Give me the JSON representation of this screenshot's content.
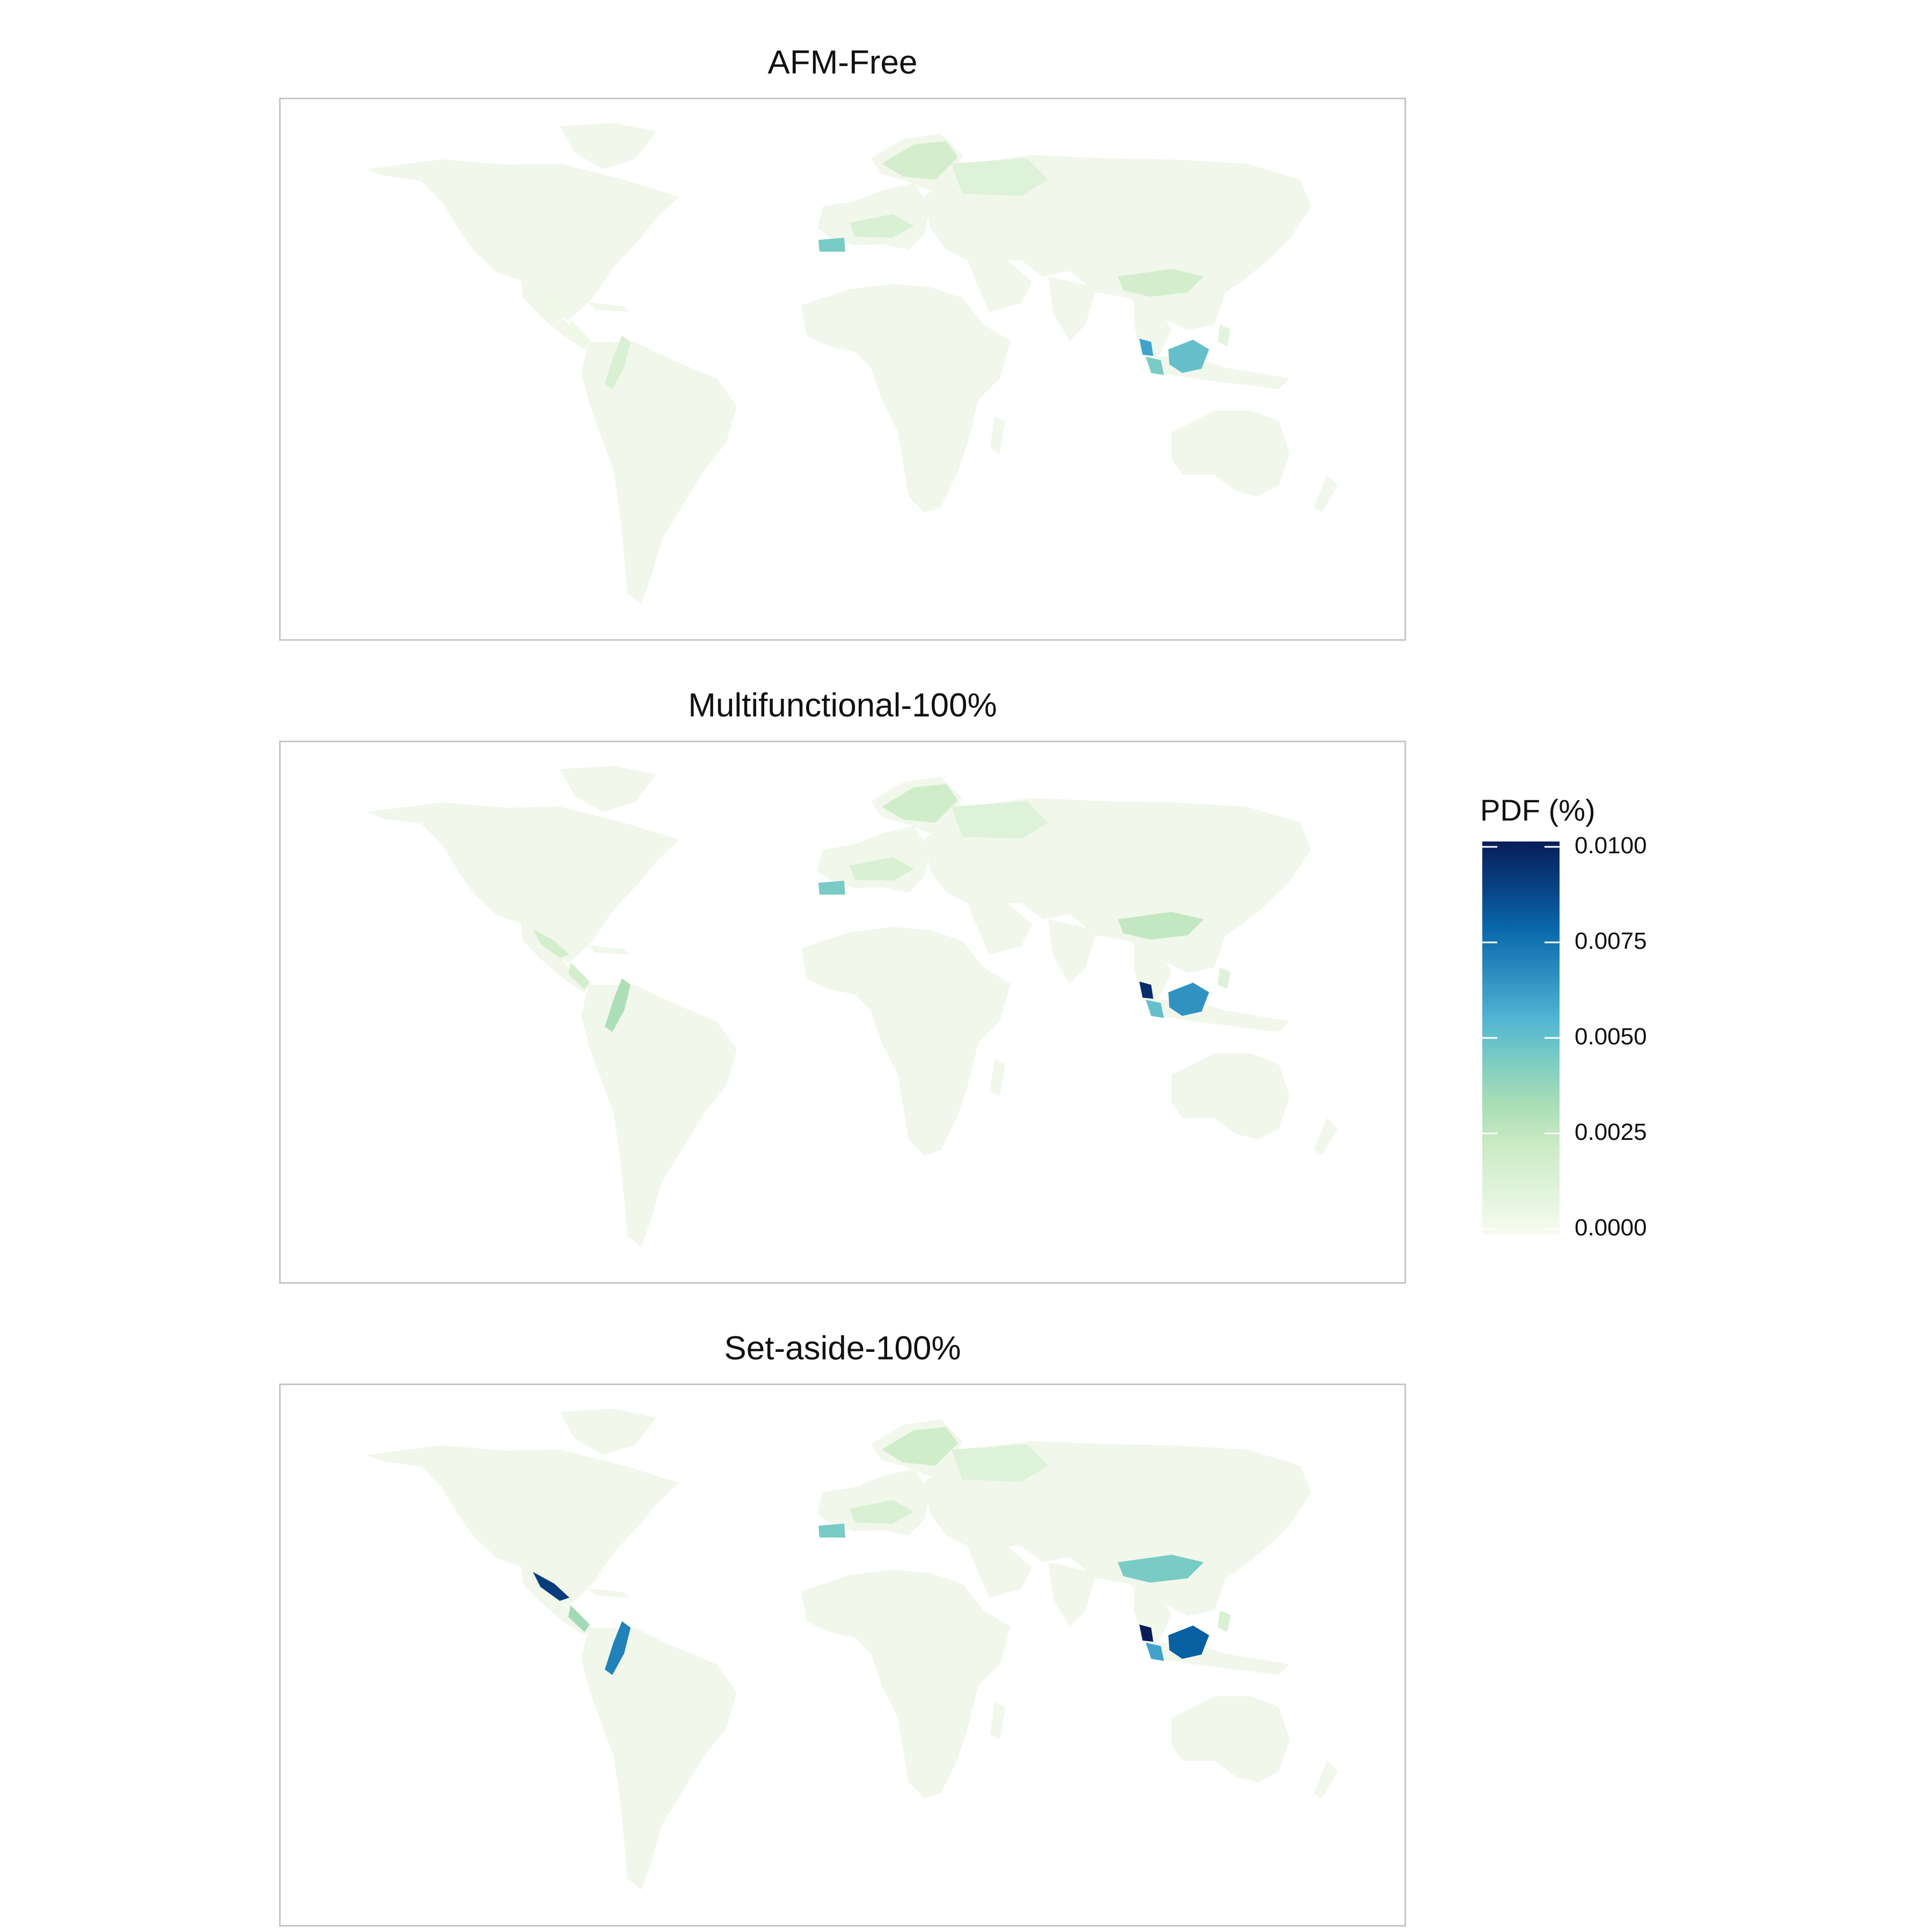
{
  "panels": [
    {
      "title": "AFM-Free",
      "hotspots": [
        {
          "id": "iberia",
          "value": 0.0045
        },
        {
          "id": "central-europe",
          "value": 0.0015
        },
        {
          "id": "scandinavia",
          "value": 0.0018
        },
        {
          "id": "west-russia",
          "value": 0.0012
        },
        {
          "id": "south-china",
          "value": 0.0018
        },
        {
          "id": "mexico",
          "value": 0.0004
        },
        {
          "id": "central-america",
          "value": 0.0004
        },
        {
          "id": "andes",
          "value": 0.0015
        },
        {
          "id": "malay-peninsula",
          "value": 0.006
        },
        {
          "id": "sumatra",
          "value": 0.0045
        },
        {
          "id": "borneo",
          "value": 0.005
        },
        {
          "id": "philippines",
          "value": 0.001
        }
      ]
    },
    {
      "title": "Multifunctional-100%",
      "hotspots": [
        {
          "id": "iberia",
          "value": 0.0045
        },
        {
          "id": "central-europe",
          "value": 0.0015
        },
        {
          "id": "scandinavia",
          "value": 0.002
        },
        {
          "id": "west-russia",
          "value": 0.0012
        },
        {
          "id": "south-china",
          "value": 0.0025
        },
        {
          "id": "mexico",
          "value": 0.0018
        },
        {
          "id": "central-america",
          "value": 0.0018
        },
        {
          "id": "andes",
          "value": 0.0032
        },
        {
          "id": "malay-peninsula",
          "value": 0.0095
        },
        {
          "id": "sumatra",
          "value": 0.005
        },
        {
          "id": "borneo",
          "value": 0.0065
        },
        {
          "id": "philippines",
          "value": 0.0012
        }
      ]
    },
    {
      "title": "Set-aside-100%",
      "hotspots": [
        {
          "id": "iberia",
          "value": 0.0045
        },
        {
          "id": "central-europe",
          "value": 0.0015
        },
        {
          "id": "scandinavia",
          "value": 0.002
        },
        {
          "id": "west-russia",
          "value": 0.0012
        },
        {
          "id": "south-china",
          "value": 0.0045
        },
        {
          "id": "mexico",
          "value": 0.009
        },
        {
          "id": "central-america",
          "value": 0.0035
        },
        {
          "id": "andes",
          "value": 0.007
        },
        {
          "id": "malay-peninsula",
          "value": 0.01
        },
        {
          "id": "sumatra",
          "value": 0.006
        },
        {
          "id": "borneo",
          "value": 0.008
        },
        {
          "id": "philippines",
          "value": 0.0015
        }
      ]
    }
  ],
  "legend": {
    "title": "PDF (%)",
    "min": 0,
    "max": 0.01,
    "ticks": [
      "0.0000",
      "0.0025",
      "0.0050",
      "0.0075",
      "0.0100"
    ],
    "palette": [
      "#f7fcf0",
      "#e0f3db",
      "#ccebc5",
      "#a8ddb5",
      "#7bccc4",
      "#4eb3d3",
      "#2b8cbe",
      "#0868ac",
      "#084081",
      "#081d58"
    ]
  },
  "colors": {
    "land": "#f1f7eb",
    "frame": "#c6c6c6",
    "background": "#ffffff"
  }
}
